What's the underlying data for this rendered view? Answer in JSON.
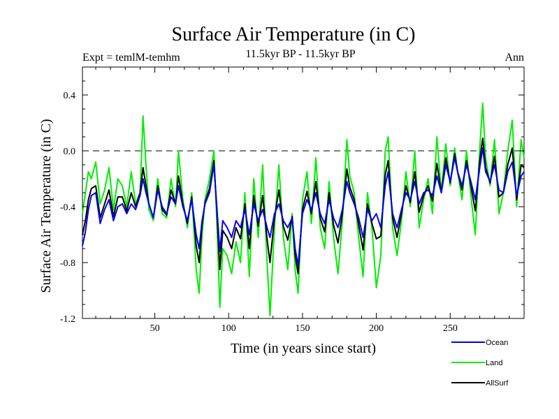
{
  "chart_data": {
    "type": "line",
    "title": "Surface Air Temperature (in C)",
    "subtitle_left": "Expt = temlM-temhm",
    "subtitle_center": "11.5kyr BP - 11.5kyr BP",
    "subtitle_right": "Ann",
    "xlabel": "Time (in years since start)",
    "ylabel": "Surface Air Temperature (in C)",
    "xlim": [
      1,
      300
    ],
    "ylim": [
      -1.2,
      0.6
    ],
    "x_ticks": [
      50,
      100,
      150,
      200,
      250
    ],
    "x_tick_labels": [
      "50",
      "100",
      "150",
      "200",
      "250"
    ],
    "y_ticks": [
      -1.2,
      -0.8,
      -0.4,
      0.0,
      0.4
    ],
    "y_tick_labels": [
      "-1.2",
      "-0.8",
      "-0.4",
      "0.0",
      "0.4"
    ],
    "reference_line": 0.0,
    "legend_placement": "bottom-right",
    "x": [
      1,
      3,
      5,
      7,
      10,
      13,
      16,
      19,
      22,
      25,
      28,
      31,
      34,
      37,
      40,
      42,
      44,
      46,
      49,
      52,
      55,
      58,
      61,
      64,
      66,
      69,
      72,
      75,
      78,
      80,
      82,
      84,
      87,
      90,
      92,
      94,
      96,
      99,
      102,
      105,
      108,
      111,
      114,
      117,
      120,
      123,
      126,
      128,
      131,
      134,
      137,
      140,
      143,
      145,
      147,
      150,
      153,
      156,
      159,
      162,
      165,
      168,
      171,
      174,
      177,
      180,
      182,
      185,
      188,
      191,
      194,
      197,
      200,
      203,
      206,
      208,
      211,
      214,
      217,
      220,
      223,
      226,
      229,
      232,
      235,
      238,
      241,
      244,
      247,
      250,
      253,
      255,
      258,
      261,
      264,
      267,
      270,
      272,
      274,
      277,
      280,
      283,
      286,
      289,
      292,
      295,
      298,
      300
    ],
    "series": [
      {
        "name": "Ocean",
        "color": "#0000ee",
        "values": [
          -0.68,
          -0.58,
          -0.42,
          -0.32,
          -0.3,
          -0.52,
          -0.42,
          -0.35,
          -0.5,
          -0.4,
          -0.38,
          -0.45,
          -0.38,
          -0.42,
          -0.32,
          -0.2,
          -0.3,
          -0.38,
          -0.48,
          -0.28,
          -0.4,
          -0.45,
          -0.33,
          -0.38,
          -0.25,
          -0.4,
          -0.5,
          -0.35,
          -0.6,
          -0.7,
          -0.5,
          -0.38,
          -0.3,
          -0.1,
          -0.4,
          -0.72,
          -0.5,
          -0.55,
          -0.62,
          -0.5,
          -0.55,
          -0.42,
          -0.6,
          -0.38,
          -0.5,
          -0.42,
          -0.55,
          -0.62,
          -0.45,
          -0.38,
          -0.5,
          -0.55,
          -0.48,
          -0.7,
          -0.82,
          -0.45,
          -0.35,
          -0.42,
          -0.3,
          -0.45,
          -0.52,
          -0.35,
          -0.48,
          -0.55,
          -0.42,
          -0.22,
          -0.3,
          -0.38,
          -0.48,
          -0.62,
          -0.42,
          -0.5,
          -0.45,
          -0.55,
          -0.25,
          -0.15,
          -0.45,
          -0.55,
          -0.42,
          -0.3,
          -0.35,
          -0.22,
          -0.38,
          -0.3,
          -0.28,
          -0.32,
          -0.18,
          -0.3,
          -0.1,
          -0.22,
          -0.05,
          -0.15,
          -0.25,
          -0.1,
          -0.22,
          -0.35,
          -0.12,
          0.02,
          -0.15,
          -0.22,
          -0.1,
          -0.28,
          -0.3,
          -0.15,
          -0.08,
          -0.32,
          -0.18,
          -0.15
        ]
      },
      {
        "name": "Land",
        "color": "#00ee00",
        "values": [
          -0.45,
          -0.3,
          -0.15,
          -0.2,
          -0.08,
          -0.38,
          -0.28,
          -0.12,
          -0.42,
          -0.2,
          -0.25,
          -0.4,
          -0.15,
          -0.38,
          -0.3,
          0.25,
          -0.1,
          -0.42,
          -0.5,
          -0.2,
          -0.45,
          -0.48,
          -0.2,
          -0.4,
          0.0,
          -0.35,
          -0.55,
          -0.3,
          -0.85,
          -1.02,
          -0.6,
          -0.35,
          -0.2,
          0.0,
          -0.5,
          -1.12,
          -0.7,
          -0.75,
          -0.88,
          -0.65,
          -0.8,
          -0.3,
          -0.9,
          -0.2,
          -0.62,
          -0.1,
          -0.8,
          -1.18,
          -0.55,
          -0.1,
          -0.62,
          -0.85,
          -0.45,
          -0.85,
          -1.02,
          -0.35,
          -0.15,
          -0.52,
          -0.05,
          -0.55,
          -0.7,
          -0.22,
          -0.62,
          -0.88,
          -0.5,
          0.08,
          -0.18,
          -0.3,
          -0.62,
          -0.9,
          -0.3,
          -0.55,
          -0.98,
          -0.75,
          0.0,
          0.1,
          -0.55,
          -0.75,
          -0.5,
          -0.15,
          -0.4,
          0.0,
          -0.55,
          -0.35,
          -0.2,
          -0.45,
          0.1,
          -0.3,
          0.05,
          -0.25,
          0.02,
          -0.15,
          -0.35,
          0.0,
          -0.32,
          -0.6,
          0.02,
          0.34,
          -0.05,
          -0.25,
          0.08,
          -0.45,
          -0.3,
          0.0,
          0.22,
          -0.4,
          0.08,
          -0.05
        ]
      },
      {
        "name": "AllSurf",
        "color": "#000000",
        "values": [
          -0.6,
          -0.5,
          -0.35,
          -0.27,
          -0.25,
          -0.48,
          -0.38,
          -0.28,
          -0.47,
          -0.33,
          -0.33,
          -0.43,
          -0.3,
          -0.4,
          -0.3,
          -0.12,
          -0.25,
          -0.38,
          -0.48,
          -0.25,
          -0.42,
          -0.46,
          -0.28,
          -0.38,
          -0.18,
          -0.38,
          -0.52,
          -0.33,
          -0.68,
          -0.8,
          -0.53,
          -0.37,
          -0.27,
          -0.07,
          -0.43,
          -0.85,
          -0.57,
          -0.62,
          -0.7,
          -0.55,
          -0.63,
          -0.38,
          -0.7,
          -0.32,
          -0.54,
          -0.32,
          -0.63,
          -0.8,
          -0.48,
          -0.28,
          -0.54,
          -0.64,
          -0.47,
          -0.75,
          -0.88,
          -0.42,
          -0.29,
          -0.45,
          -0.22,
          -0.48,
          -0.58,
          -0.3,
          -0.53,
          -0.66,
          -0.45,
          -0.13,
          -0.26,
          -0.35,
          -0.53,
          -0.71,
          -0.38,
          -0.52,
          -0.63,
          -0.61,
          -0.17,
          -0.07,
          -0.48,
          -0.62,
          -0.45,
          -0.25,
          -0.37,
          -0.15,
          -0.44,
          -0.32,
          -0.25,
          -0.36,
          -0.09,
          -0.3,
          -0.05,
          -0.23,
          -0.02,
          -0.15,
          -0.28,
          -0.07,
          -0.25,
          -0.43,
          -0.07,
          0.09,
          -0.12,
          -0.23,
          -0.04,
          -0.33,
          -0.3,
          -0.1,
          0.02,
          -0.35,
          -0.1,
          -0.12
        ]
      }
    ]
  }
}
